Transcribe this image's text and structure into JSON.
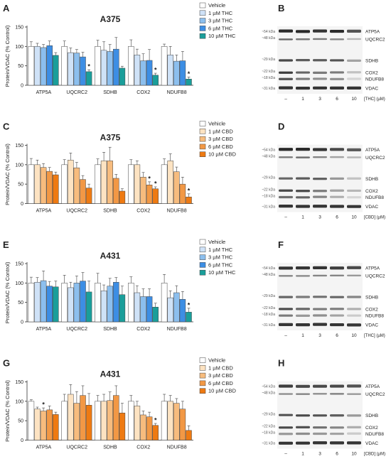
{
  "colors": {
    "vehicle": "#ffffff",
    "thc": [
      "#cfe2f7",
      "#8cbfee",
      "#3d8ee4",
      "#1a9e9a"
    ],
    "cbd": [
      "#fde3c2",
      "#f7bc7e",
      "#f29845",
      "#ee7a12"
    ],
    "outline": "#444444",
    "blot_band": "#2a2a2a"
  },
  "chart_data": [
    {
      "type": "bar",
      "panel_letter": "A",
      "title": "A375",
      "ylabel": "Protein/VDAC (% Control)",
      "ylim": [
        0,
        150
      ],
      "yticks": [
        0,
        50,
        100,
        150
      ],
      "grid": false,
      "legend_position": "right",
      "categories": [
        "ATP5A",
        "UQCRC2",
        "SDHB",
        "COX2",
        "NDUFB8"
      ],
      "palette": "thc",
      "series": [
        {
          "name": "Vehicle",
          "values": [
            100,
            100,
            100,
            100,
            100
          ],
          "errors": [
            12,
            14,
            16,
            17,
            6
          ],
          "sig": [
            false,
            false,
            false,
            false,
            false
          ]
        },
        {
          "name": "1 µM THC",
          "values": [
            100,
            84,
            90,
            78,
            78
          ],
          "errors": [
            8,
            12,
            22,
            15,
            22
          ],
          "sig": [
            false,
            false,
            false,
            false,
            false
          ]
        },
        {
          "name": "3 µM THC",
          "values": [
            97,
            83,
            87,
            63,
            62
          ],
          "errors": [
            8,
            9,
            18,
            18,
            16
          ],
          "sig": [
            false,
            false,
            false,
            false,
            false
          ]
        },
        {
          "name": "6 µM THC",
          "values": [
            102,
            73,
            93,
            64,
            63
          ],
          "errors": [
            12,
            12,
            30,
            28,
            24
          ],
          "sig": [
            false,
            false,
            false,
            false,
            false
          ]
        },
        {
          "name": "10 µM THC",
          "values": [
            77,
            35,
            44,
            26,
            16
          ],
          "errors": [
            7,
            5,
            5,
            5,
            5
          ],
          "sig": [
            false,
            true,
            false,
            true,
            true
          ]
        }
      ]
    },
    {
      "type": "bar",
      "panel_letter": "C",
      "title": "A375",
      "ylabel": "Protein/VDAC (% Control)",
      "ylim": [
        0,
        150
      ],
      "yticks": [
        0,
        50,
        100,
        150
      ],
      "grid": false,
      "legend_position": "right",
      "categories": [
        "ATP5A",
        "UQCRC2",
        "SDHB",
        "COX2",
        "NDUFB8"
      ],
      "palette": "cbd",
      "series": [
        {
          "name": "Vehicle",
          "values": [
            100,
            100,
            100,
            100,
            100
          ],
          "errors": [
            16,
            13,
            15,
            13,
            15
          ],
          "sig": [
            false,
            false,
            false,
            false,
            false
          ]
        },
        {
          "name": "1 µM CBD",
          "values": [
            100,
            112,
            110,
            100,
            110
          ],
          "errors": [
            12,
            18,
            22,
            10,
            18
          ],
          "sig": [
            false,
            false,
            false,
            false,
            false
          ]
        },
        {
          "name": "3 µM CBD",
          "values": [
            93,
            92,
            110,
            68,
            82
          ],
          "errors": [
            10,
            14,
            35,
            12,
            12
          ],
          "sig": [
            false,
            false,
            false,
            false,
            false
          ]
        },
        {
          "name": "6 µM CBD",
          "values": [
            83,
            62,
            65,
            48,
            50
          ],
          "errors": [
            10,
            10,
            10,
            8,
            18
          ],
          "sig": [
            false,
            false,
            false,
            true,
            false
          ]
        },
        {
          "name": "10 µM CBD",
          "values": [
            74,
            40,
            32,
            38,
            17
          ],
          "errors": [
            7,
            10,
            6,
            5,
            8
          ],
          "sig": [
            false,
            false,
            false,
            true,
            true
          ]
        }
      ]
    },
    {
      "type": "bar",
      "panel_letter": "E",
      "title": "A431",
      "ylabel": "Protein/VDAC (% Control)",
      "ylim": [
        0,
        150
      ],
      "yticks": [
        0,
        50,
        100,
        150
      ],
      "grid": false,
      "legend_position": "right",
      "categories": [
        "ATP5A",
        "UQCRC2",
        "SDHB",
        "COX2",
        "NDUFB8"
      ],
      "palette": "thc",
      "series": [
        {
          "name": "Vehicle",
          "values": [
            100,
            100,
            100,
            100,
            100
          ],
          "errors": [
            15,
            20,
            25,
            16,
            22
          ],
          "sig": [
            false,
            false,
            false,
            false,
            false
          ]
        },
        {
          "name": "1 µM THC",
          "values": [
            102,
            88,
            80,
            75,
            62
          ],
          "errors": [
            12,
            14,
            15,
            18,
            18
          ],
          "sig": [
            false,
            false,
            false,
            false,
            false
          ]
        },
        {
          "name": "3 µM THC",
          "values": [
            106,
            100,
            92,
            65,
            75
          ],
          "errors": [
            25,
            18,
            20,
            20,
            18
          ],
          "sig": [
            false,
            false,
            false,
            false,
            false
          ]
        },
        {
          "name": "6 µM THC",
          "values": [
            92,
            105,
            102,
            65,
            58
          ],
          "errors": [
            12,
            22,
            12,
            20,
            20
          ],
          "sig": [
            false,
            false,
            false,
            false,
            false
          ]
        },
        {
          "name": "10 µM THC",
          "values": [
            90,
            77,
            70,
            38,
            25
          ],
          "errors": [
            15,
            28,
            22,
            10,
            10
          ],
          "sig": [
            false,
            false,
            false,
            false,
            true
          ]
        }
      ]
    },
    {
      "type": "bar",
      "panel_letter": "G",
      "title": "A431",
      "ylabel": "Protein/VDAC (% Control)",
      "ylim": [
        0,
        150
      ],
      "yticks": [
        0,
        50,
        100,
        150
      ],
      "grid": false,
      "legend_position": "right",
      "categories": [
        "ATP5A",
        "UQCRC2",
        "SDHB",
        "COX2",
        "NDUFB8"
      ],
      "palette": "cbd",
      "series": [
        {
          "name": "Vehicle",
          "values": [
            100,
            100,
            100,
            100,
            100
          ],
          "errors": [
            4,
            18,
            15,
            15,
            18
          ],
          "sig": [
            false,
            false,
            false,
            false,
            false
          ]
        },
        {
          "name": "1 µM CBD",
          "values": [
            80,
            118,
            100,
            88,
            100
          ],
          "errors": [
            5,
            25,
            18,
            12,
            15
          ],
          "sig": [
            false,
            false,
            false,
            false,
            false
          ]
        },
        {
          "name": "3 µM CBD",
          "values": [
            75,
            95,
            102,
            65,
            95
          ],
          "errors": [
            8,
            30,
            22,
            10,
            12
          ],
          "sig": [
            true,
            false,
            false,
            false,
            false
          ]
        },
        {
          "name": "6 µM CBD",
          "values": [
            78,
            115,
            115,
            60,
            80
          ],
          "errors": [
            10,
            25,
            25,
            12,
            20
          ],
          "sig": [
            false,
            false,
            false,
            false,
            false
          ]
        },
        {
          "name": "10 µM CBD",
          "values": [
            66,
            90,
            70,
            38,
            25
          ],
          "errors": [
            6,
            30,
            25,
            5,
            12
          ],
          "sig": [
            false,
            false,
            false,
            true,
            false
          ]
        }
      ]
    }
  ],
  "blots": [
    {
      "panel_letter": "B",
      "markers": [
        "~54 kDa",
        "~48 kDa",
        "~29 kDa",
        "~22 kDa",
        "~18 kDa",
        "~31 kDa"
      ],
      "proteins": [
        "ATP5A",
        "UQCRC2",
        "SDHB",
        "COX2",
        "NDUFB8",
        "VDAC"
      ],
      "lanes": [
        "–",
        "1",
        "3",
        "6",
        "10"
      ],
      "lane_axis_label": "[THC] (µM)",
      "intensity": {
        "ATP5A": [
          1.0,
          1.0,
          0.95,
          1.0,
          0.8
        ],
        "UQCRC2": [
          0.7,
          0.6,
          0.6,
          0.55,
          0.3
        ],
        "SDHB": [
          0.85,
          0.75,
          0.75,
          0.8,
          0.4
        ],
        "COX2": [
          0.9,
          0.7,
          0.6,
          0.6,
          0.25
        ],
        "NDUFB8": [
          0.8,
          0.6,
          0.5,
          0.5,
          0.15
        ],
        "VDAC": [
          0.95,
          0.95,
          0.95,
          0.95,
          0.95
        ]
      }
    },
    {
      "panel_letter": "D",
      "markers": [
        "~54 kDa",
        "~48 kDa",
        "~29 kDa",
        "~22 kDa",
        "~18 kDa",
        "~31 kDa"
      ],
      "proteins": [
        "ATP5A",
        "UQCRC2",
        "SDHB",
        "COX2",
        "NDUFB8",
        "VDAC"
      ],
      "lanes": [
        "–",
        "1",
        "3",
        "6",
        "10"
      ],
      "lane_axis_label": "[CBD] (µM)",
      "intensity": {
        "ATP5A": [
          1.0,
          1.0,
          0.95,
          0.85,
          0.75
        ],
        "UQCRC2": [
          0.6,
          0.65,
          0.55,
          0.4,
          0.3
        ],
        "SDHB": [
          0.7,
          0.75,
          0.75,
          0.45,
          0.25
        ],
        "COX2": [
          0.85,
          0.85,
          0.6,
          0.4,
          0.3
        ],
        "NDUFB8": [
          0.65,
          0.7,
          0.55,
          0.35,
          0.15
        ],
        "VDAC": [
          0.95,
          0.95,
          0.95,
          0.95,
          0.95
        ]
      }
    },
    {
      "panel_letter": "F",
      "markers": [
        "~54 kDa",
        "~48 kDa",
        "~29 kDa",
        "~22 kDa",
        "~18 kDa",
        "~31 kDa"
      ],
      "proteins": [
        "ATP5A",
        "UQCRC2",
        "SDHB",
        "COX2",
        "NDUFB8",
        "VDAC"
      ],
      "lanes": [
        "–",
        "1",
        "3",
        "6",
        "10"
      ],
      "lane_axis_label": "[THC] (µM)",
      "intensity": {
        "ATP5A": [
          0.95,
          0.95,
          0.95,
          0.9,
          0.85
        ],
        "UQCRC2": [
          0.55,
          0.5,
          0.55,
          0.55,
          0.45
        ],
        "SDHB": [
          0.7,
          0.6,
          0.65,
          0.7,
          0.55
        ],
        "COX2": [
          0.85,
          0.7,
          0.6,
          0.6,
          0.35
        ],
        "NDUFB8": [
          0.6,
          0.45,
          0.5,
          0.4,
          0.2
        ],
        "VDAC": [
          0.95,
          0.95,
          0.95,
          0.95,
          0.95
        ]
      }
    },
    {
      "panel_letter": "H",
      "markers": [
        "~54 kDa",
        "~48 kDa",
        "~29 kDa",
        "~22 kDa",
        "~18 kDa",
        "~31 kDa"
      ],
      "proteins": [
        "ATP5A",
        "UQCRC2",
        "SDHB",
        "COX2",
        "NDUFB8",
        "VDAC"
      ],
      "lanes": [
        "–",
        "1",
        "3",
        "6",
        "10"
      ],
      "lane_axis_label": "[CBD] (µM)",
      "intensity": {
        "ATP5A": [
          0.9,
          0.85,
          0.85,
          0.85,
          0.8
        ],
        "UQCRC2": [
          0.5,
          0.55,
          0.5,
          0.55,
          0.45
        ],
        "SDHB": [
          0.8,
          0.85,
          0.8,
          0.75,
          0.45
        ],
        "COX2": [
          0.85,
          0.8,
          0.65,
          0.55,
          0.35
        ],
        "NDUFB8": [
          0.45,
          0.5,
          0.45,
          0.4,
          0.2
        ],
        "VDAC": [
          0.95,
          0.95,
          0.95,
          0.95,
          0.95
        ]
      }
    }
  ]
}
